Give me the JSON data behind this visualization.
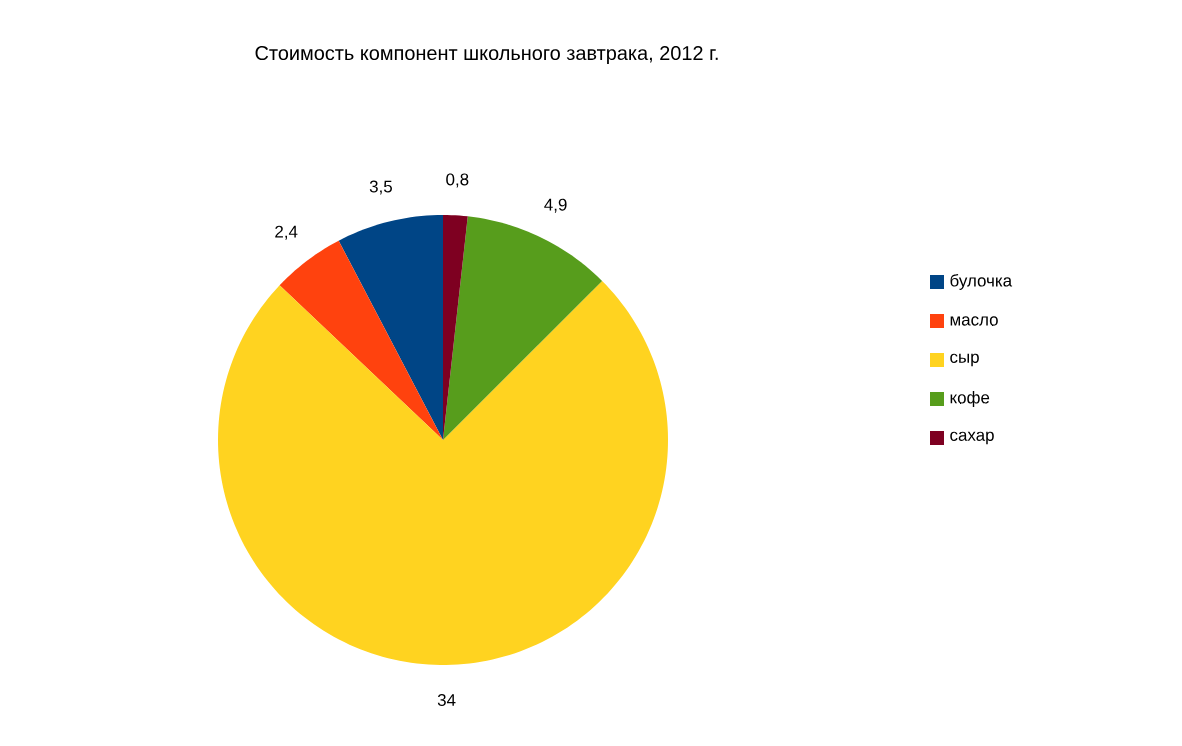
{
  "chart_data": {
    "type": "pie",
    "title": "Стоимость компонент школьного завтрака, 2012 г.",
    "categories": [
      "булочка",
      "масло",
      "сыр",
      "кофе",
      "сахар"
    ],
    "values": [
      3.5,
      2.4,
      34,
      4.9,
      0.8
    ],
    "value_labels": [
      "3,5",
      "2,4",
      "34",
      "4,9",
      "0,8"
    ],
    "colors": [
      "#004586",
      "#ff420e",
      "#ffd320",
      "#579d1c",
      "#7e0021"
    ],
    "legend": "right"
  }
}
